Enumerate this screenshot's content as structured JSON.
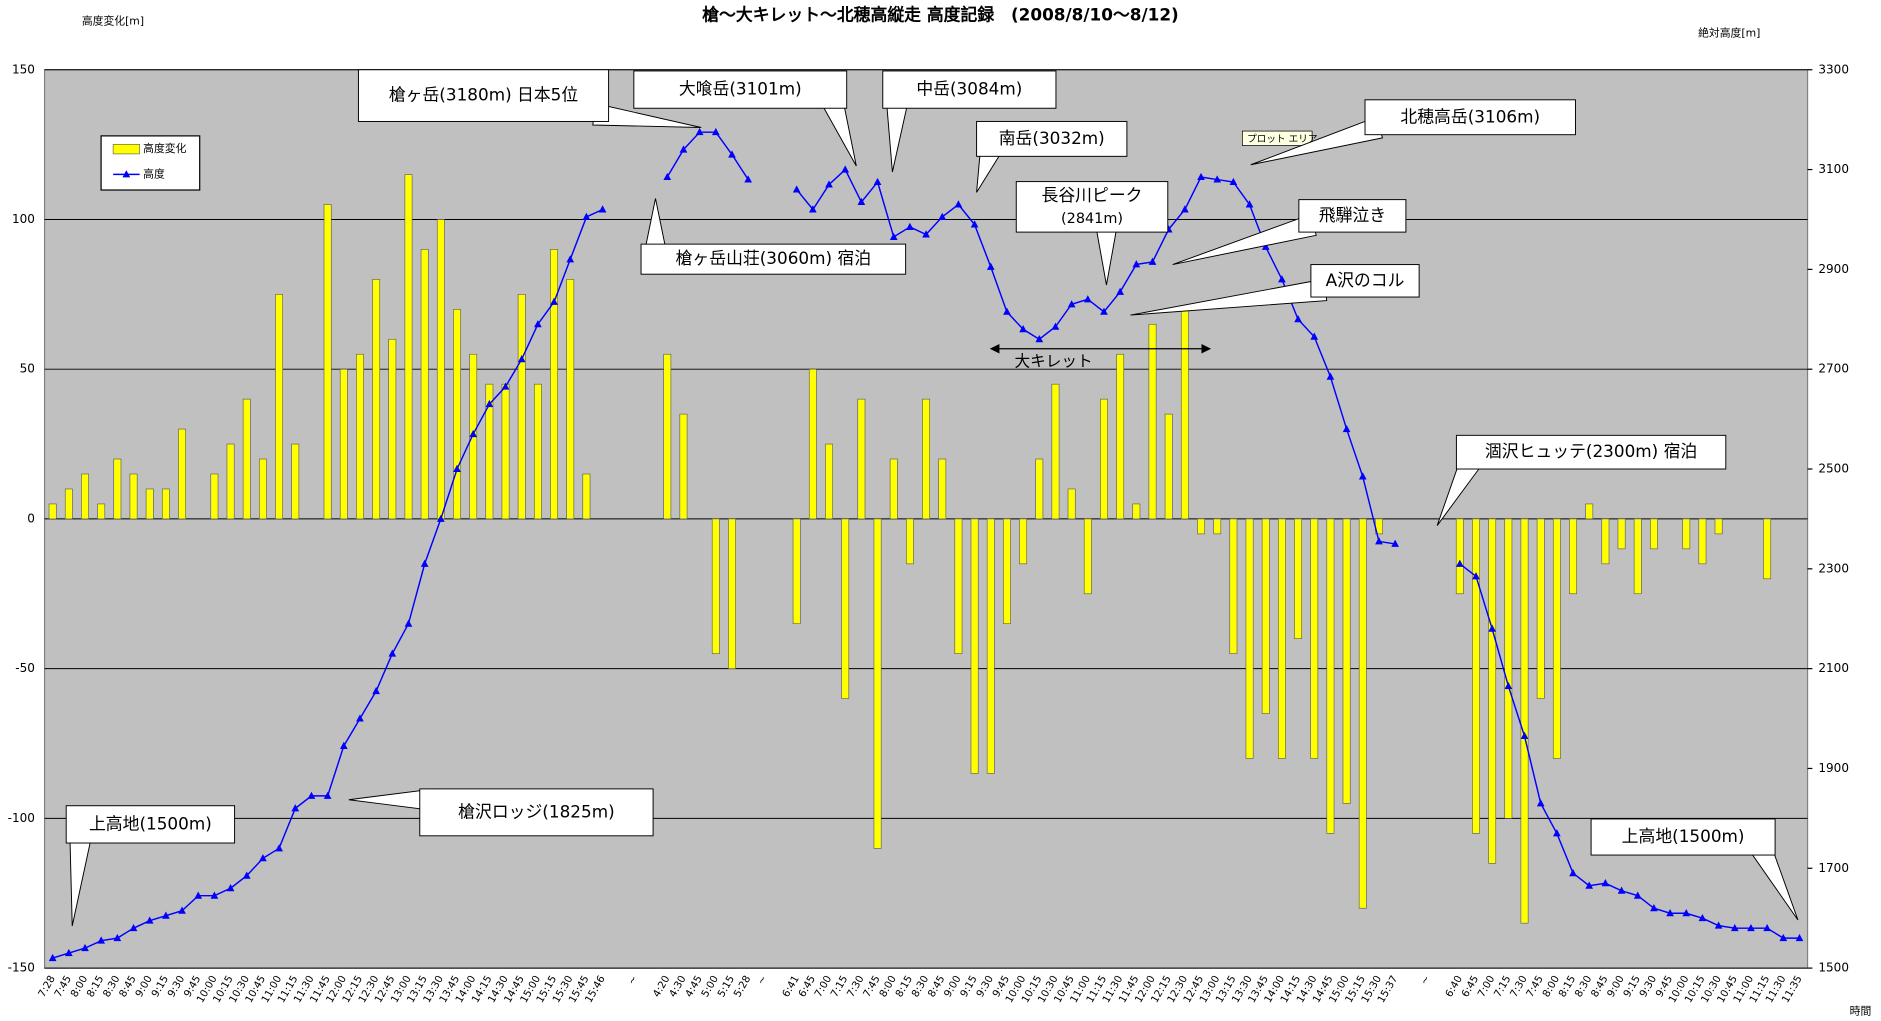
{
  "chart_data": {
    "type": "combo",
    "title": "槍〜大キレット〜北穂高縦走 高度記録　(2008/8/10〜8/12)",
    "y_label": "高度変化[m]",
    "y2_label": "絶対高度[m]",
    "x_label": "時間",
    "categories": [
      "7:28",
      "7:45",
      "8:00",
      "8:15",
      "8:30",
      "8:45",
      "9:00",
      "9:15",
      "9:30",
      "9:45",
      "10:00",
      "10:15",
      "10:30",
      "10:45",
      "11:00",
      "11:15",
      "11:30",
      "11:45",
      "12:00",
      "12:15",
      "12:30",
      "12:45",
      "13:00",
      "13:15",
      "13:30",
      "13:45",
      "14:00",
      "14:15",
      "14:30",
      "14:45",
      "15:00",
      "15:15",
      "15:30",
      "15:45",
      "15:46",
      null,
      "~",
      null,
      "4:20",
      "4:30",
      "4:45",
      "5:00",
      "5:15",
      "5:28",
      "~",
      null,
      "6:41",
      "6:45",
      "7:00",
      "7:15",
      "7:30",
      "7:45",
      "8:00",
      "8:15",
      "8:30",
      "8:45",
      "9:00",
      "9:15",
      "9:30",
      "9:45",
      "10:00",
      "10:15",
      "10:30",
      "10:45",
      "11:00",
      "11:15",
      "11:30",
      "11:45",
      "12:00",
      "12:15",
      "12:30",
      "12:45",
      "13:00",
      "13:15",
      "13:30",
      "13:45",
      "14:00",
      "14:15",
      "14:30",
      "14:45",
      "15:00",
      "15:15",
      "15:30",
      "15:37",
      null,
      "~",
      null,
      "6:40",
      "6:45",
      "7:00",
      "7:15",
      "7:30",
      "7:45",
      "8:00",
      "8:15",
      "8:30",
      "8:45",
      "9:00",
      "9:15",
      "9:30",
      "9:45",
      "10:00",
      "10:15",
      "10:30",
      "10:45",
      "11:00",
      "11:15",
      "11:30",
      "11:35"
    ],
    "series": [
      {
        "name": "高度変化",
        "type": "bar",
        "color": "#ffff00",
        "values": [
          5,
          10,
          15,
          5,
          20,
          15,
          10,
          10,
          30,
          0,
          15,
          25,
          40,
          20,
          75,
          25,
          0,
          105,
          50,
          55,
          80,
          60,
          115,
          90,
          100,
          70,
          55,
          45,
          45,
          75,
          45,
          90,
          80,
          15,
          0,
          null,
          null,
          null,
          55,
          35,
          0,
          -45,
          -50,
          0,
          null,
          null,
          -35,
          50,
          25,
          -60,
          40,
          -110,
          20,
          -15,
          40,
          20,
          -45,
          -85,
          -85,
          -35,
          -15,
          20,
          45,
          10,
          -25,
          40,
          55,
          5,
          65,
          35,
          70,
          -5,
          -5,
          -45,
          -80,
          -65,
          -80,
          -40,
          -80,
          -105,
          -95,
          -130,
          -5,
          0,
          null,
          null,
          null,
          -25,
          -105,
          -115,
          -100,
          -135,
          -60,
          -80,
          -25,
          5,
          -15,
          -10,
          -25,
          -10,
          0,
          -10,
          -15,
          -5,
          0,
          0,
          -20,
          0,
          0
        ]
      },
      {
        "name": "高度",
        "type": "line",
        "axis": "y2",
        "color": "#0000ff",
        "values": [
          1520,
          1530,
          1540,
          1555,
          1560,
          1580,
          1595,
          1605,
          1615,
          1645,
          1645,
          1660,
          1685,
          1720,
          1740,
          1820,
          1845,
          1845,
          1945,
          2000,
          2055,
          2130,
          2190,
          2310,
          2400,
          2500,
          2570,
          2630,
          2665,
          2720,
          2790,
          2835,
          2920,
          3005,
          3020,
          null,
          null,
          null,
          3085,
          3140,
          3175,
          3175,
          3130,
          3080,
          null,
          null,
          3060,
          3020,
          3070,
          3100,
          3035,
          3075,
          2965,
          2985,
          2970,
          3005,
          3030,
          2990,
          2905,
          2815,
          2780,
          2760,
          2785,
          2830,
          2840,
          2815,
          2855,
          2910,
          2915,
          2980,
          3020,
          3085,
          3080,
          3075,
          3030,
          2945,
          2880,
          2800,
          2765,
          2685,
          2580,
          2485,
          2355,
          2350,
          null,
          null,
          null,
          2310,
          2285,
          2180,
          2065,
          1965,
          1830,
          1770,
          1690,
          1665,
          1670,
          1655,
          1645,
          1620,
          1610,
          1610,
          1600,
          1585,
          1580,
          1580,
          1580,
          1560,
          1560
        ]
      }
    ],
    "ylim": [
      -150,
      150
    ],
    "yticks": [
      -150,
      -100,
      -50,
      0,
      50,
      100,
      150
    ],
    "y2lim": [
      1500,
      3300
    ],
    "y2ticks": [
      1500,
      1700,
      1900,
      2100,
      2300,
      2500,
      2700,
      2900,
      3100,
      3300
    ],
    "grid": true,
    "legend": "upper left",
    "plot_area_label": "プロット エリア",
    "span_label": "大キレット",
    "annotations": [
      {
        "text": "槍ヶ岳(3180m) 日本5位"
      },
      {
        "text": "大喰岳(3101m)"
      },
      {
        "text": "中岳(3084m)"
      },
      {
        "text": "南岳(3032m)"
      },
      {
        "lines": [
          "長谷川ピーク",
          "(2841m)"
        ]
      },
      {
        "text": "北穂高岳(3106m)"
      },
      {
        "text": "飛騨泣き"
      },
      {
        "text": "A沢のコル"
      },
      {
        "text": "槍ヶ岳山荘(3060m) 宿泊"
      },
      {
        "text": "涸沢ヒュッテ(2300m) 宿泊"
      },
      {
        "text": "上高地(1500m)"
      },
      {
        "text": "槍沢ロッジ(1825m)"
      },
      {
        "text": "上高地(1500m)"
      }
    ]
  }
}
